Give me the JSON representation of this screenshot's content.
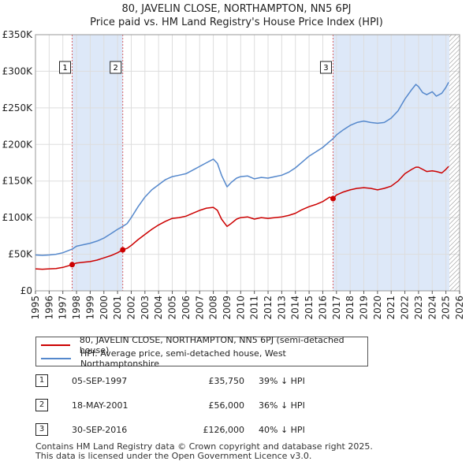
{
  "title": "80, JAVELIN CLOSE, NORTHAMPTON, NN5 6PJ",
  "subtitle": "Price paid vs. HM Land Registry's House Price Index (HPI)",
  "colors": {
    "property_line": "#cc0000",
    "hpi_line": "#5588cc",
    "shade": "#dde8f8",
    "vline": "#cc0000",
    "grid": "#dddddd",
    "future_hatch": "#888888"
  },
  "chart_data": {
    "type": "line",
    "title": "80, JAVELIN CLOSE, NORTHAMPTON, NN5 6PJ",
    "subtitle": "Price paid vs. HM Land Registry's House Price Index (HPI)",
    "xlabel": "",
    "ylabel": "",
    "xlim": [
      1995,
      2026
    ],
    "ylim": [
      0,
      350000
    ],
    "yticks": [
      0,
      50000,
      100000,
      150000,
      200000,
      250000,
      300000,
      350000
    ],
    "ytick_labels": [
      "£0",
      "£50K",
      "£100K",
      "£150K",
      "£200K",
      "£250K",
      "£300K",
      "£350K"
    ],
    "xticks": [
      "1995",
      "1996",
      "1997",
      "1998",
      "1999",
      "2000",
      "2001",
      "2002",
      "2003",
      "2004",
      "2005",
      "2006",
      "2007",
      "2008",
      "2009",
      "2010",
      "2011",
      "2012",
      "2013",
      "2014",
      "2015",
      "2016",
      "2017",
      "2018",
      "2019",
      "2020",
      "2021",
      "2022",
      "2023",
      "2024",
      "2025",
      "2026"
    ],
    "grid": true,
    "shaded_regions": [
      [
        1997.68,
        2001.38
      ],
      [
        2016.75,
        2025.25
      ]
    ],
    "hatched_region": [
      2025.25,
      2026
    ],
    "series": [
      {
        "name": "80, JAVELIN CLOSE, NORTHAMPTON, NN5 6PJ (semi-detached house)",
        "color": "#cc0000",
        "x": [
          1995,
          1995.5,
          1996,
          1996.5,
          1997,
          1997.68,
          1998,
          1998.5,
          1999,
          1999.5,
          2000,
          2000.5,
          2001,
          2001.38,
          2001.7,
          2002,
          2002.5,
          2003,
          2003.5,
          2004,
          2004.5,
          2005,
          2005.5,
          2006,
          2006.5,
          2007,
          2007.5,
          2008,
          2008.3,
          2008.6,
          2009,
          2009.3,
          2009.7,
          2010,
          2010.5,
          2011,
          2011.5,
          2012,
          2012.5,
          2013,
          2013.5,
          2014,
          2014.5,
          2015,
          2015.5,
          2016,
          2016.5,
          2016.75,
          2017,
          2017.5,
          2018,
          2018.5,
          2019,
          2019.5,
          2020,
          2020.5,
          2021,
          2021.5,
          2022,
          2022.5,
          2022.8,
          2023,
          2023.3,
          2023.6,
          2024,
          2024.3,
          2024.7,
          2025,
          2025.2
        ],
        "values": [
          30000,
          29500,
          30000,
          30500,
          32000,
          35750,
          38000,
          39000,
          40000,
          42000,
          45000,
          48000,
          52000,
          56000,
          58000,
          62000,
          70000,
          77000,
          84000,
          90000,
          95000,
          99000,
          100000,
          102000,
          106000,
          110000,
          113000,
          114000,
          110000,
          98000,
          88000,
          92000,
          98000,
          100000,
          101000,
          98000,
          100000,
          99000,
          100000,
          101000,
          103000,
          106000,
          111000,
          115000,
          118000,
          122000,
          128000,
          126000,
          131000,
          135000,
          138000,
          140000,
          141000,
          140000,
          138000,
          140000,
          143000,
          150000,
          160000,
          166000,
          169000,
          169000,
          166000,
          163000,
          164000,
          163000,
          161000,
          166000,
          170000
        ]
      },
      {
        "name": "HPI: Average price, semi-detached house, West Northamptonshire",
        "color": "#5588cc",
        "x": [
          1995,
          1995.5,
          1996,
          1996.5,
          1997,
          1997.68,
          1998,
          1998.5,
          1999,
          1999.5,
          2000,
          2000.5,
          2001,
          2001.38,
          2001.7,
          2002,
          2002.5,
          2003,
          2003.5,
          2004,
          2004.5,
          2005,
          2005.5,
          2006,
          2006.5,
          2007,
          2007.5,
          2008,
          2008.3,
          2008.6,
          2009,
          2009.3,
          2009.7,
          2010,
          2010.5,
          2011,
          2011.5,
          2012,
          2012.5,
          2013,
          2013.5,
          2014,
          2014.5,
          2015,
          2015.5,
          2016,
          2016.5,
          2016.75,
          2017,
          2017.5,
          2018,
          2018.5,
          2019,
          2019.5,
          2020,
          2020.5,
          2021,
          2021.5,
          2022,
          2022.5,
          2022.8,
          2023,
          2023.3,
          2023.6,
          2024,
          2024.3,
          2024.7,
          2025,
          2025.2
        ],
        "values": [
          49000,
          48500,
          49000,
          50000,
          52000,
          57000,
          61000,
          63000,
          65000,
          68000,
          72000,
          78000,
          84000,
          88000,
          92000,
          100000,
          115000,
          128000,
          138000,
          145000,
          152000,
          156000,
          158000,
          160000,
          165000,
          170000,
          175000,
          180000,
          174000,
          158000,
          142000,
          148000,
          154000,
          156000,
          157000,
          153000,
          155000,
          154000,
          156000,
          158000,
          162000,
          168000,
          176000,
          184000,
          190000,
          196000,
          204000,
          208000,
          213000,
          220000,
          226000,
          230000,
          232000,
          230000,
          229000,
          230000,
          236000,
          246000,
          262000,
          275000,
          282000,
          279000,
          271000,
          268000,
          272000,
          266000,
          270000,
          278000,
          285000
        ]
      }
    ],
    "sales": [
      {
        "label": "1",
        "x": 1997.68,
        "value": 35750
      },
      {
        "label": "2",
        "x": 2001.38,
        "value": 56000
      },
      {
        "label": "3",
        "x": 2016.75,
        "value": 126000
      }
    ]
  },
  "legend": {
    "property": "80, JAVELIN CLOSE, NORTHAMPTON, NN5 6PJ (semi-detached house)",
    "hpi": "HPI: Average price, semi-detached house, West Northamptonshire"
  },
  "transactions": [
    {
      "num": "1",
      "date": "05-SEP-1997",
      "price": "£35,750",
      "hpi": "39% ↓ HPI"
    },
    {
      "num": "2",
      "date": "18-MAY-2001",
      "price": "£56,000",
      "hpi": "36% ↓ HPI"
    },
    {
      "num": "3",
      "date": "30-SEP-2016",
      "price": "£126,000",
      "hpi": "40% ↓ HPI"
    }
  ],
  "footer": {
    "line1": "Contains HM Land Registry data © Crown copyright and database right 2025.",
    "line2": "This data is licensed under the Open Government Licence v3.0."
  }
}
